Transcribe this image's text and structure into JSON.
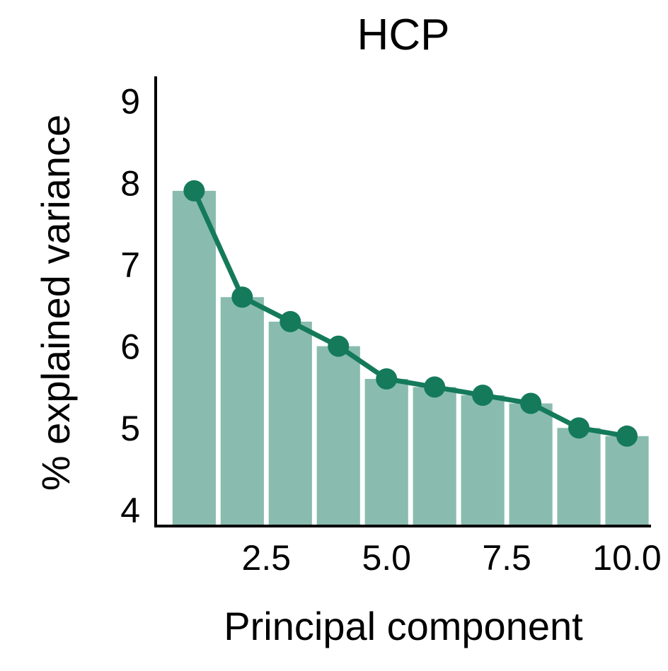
{
  "chart_data": {
    "type": "bar",
    "title": "HCP",
    "xlabel": "Principal component",
    "ylabel": "% explained variance",
    "x": [
      1,
      2,
      3,
      4,
      5,
      6,
      7,
      8,
      9,
      10
    ],
    "values": [
      7.9,
      6.6,
      6.3,
      6.0,
      5.6,
      5.5,
      5.4,
      5.3,
      5.0,
      4.9
    ],
    "overlay": {
      "type": "line",
      "markers": true,
      "values": [
        7.9,
        6.6,
        6.3,
        6.0,
        5.6,
        5.5,
        5.4,
        5.3,
        5.0,
        4.9
      ]
    },
    "xlim": [
      0.2,
      10.5
    ],
    "ylim": [
      3.8,
      9.3
    ],
    "xticks": [
      2.5,
      5.0,
      7.5,
      10.0
    ],
    "xtick_labels": [
      "2.5",
      "5.0",
      "7.5",
      "10.0"
    ],
    "yticks": [
      4,
      5,
      6,
      7,
      8,
      9
    ],
    "ytick_labels": [
      "4",
      "5",
      "6",
      "7",
      "8",
      "9"
    ],
    "grid": false,
    "legend": "none",
    "colors": {
      "bar": "#89bcae",
      "line": "#147a5a",
      "axis": "#000000"
    }
  }
}
